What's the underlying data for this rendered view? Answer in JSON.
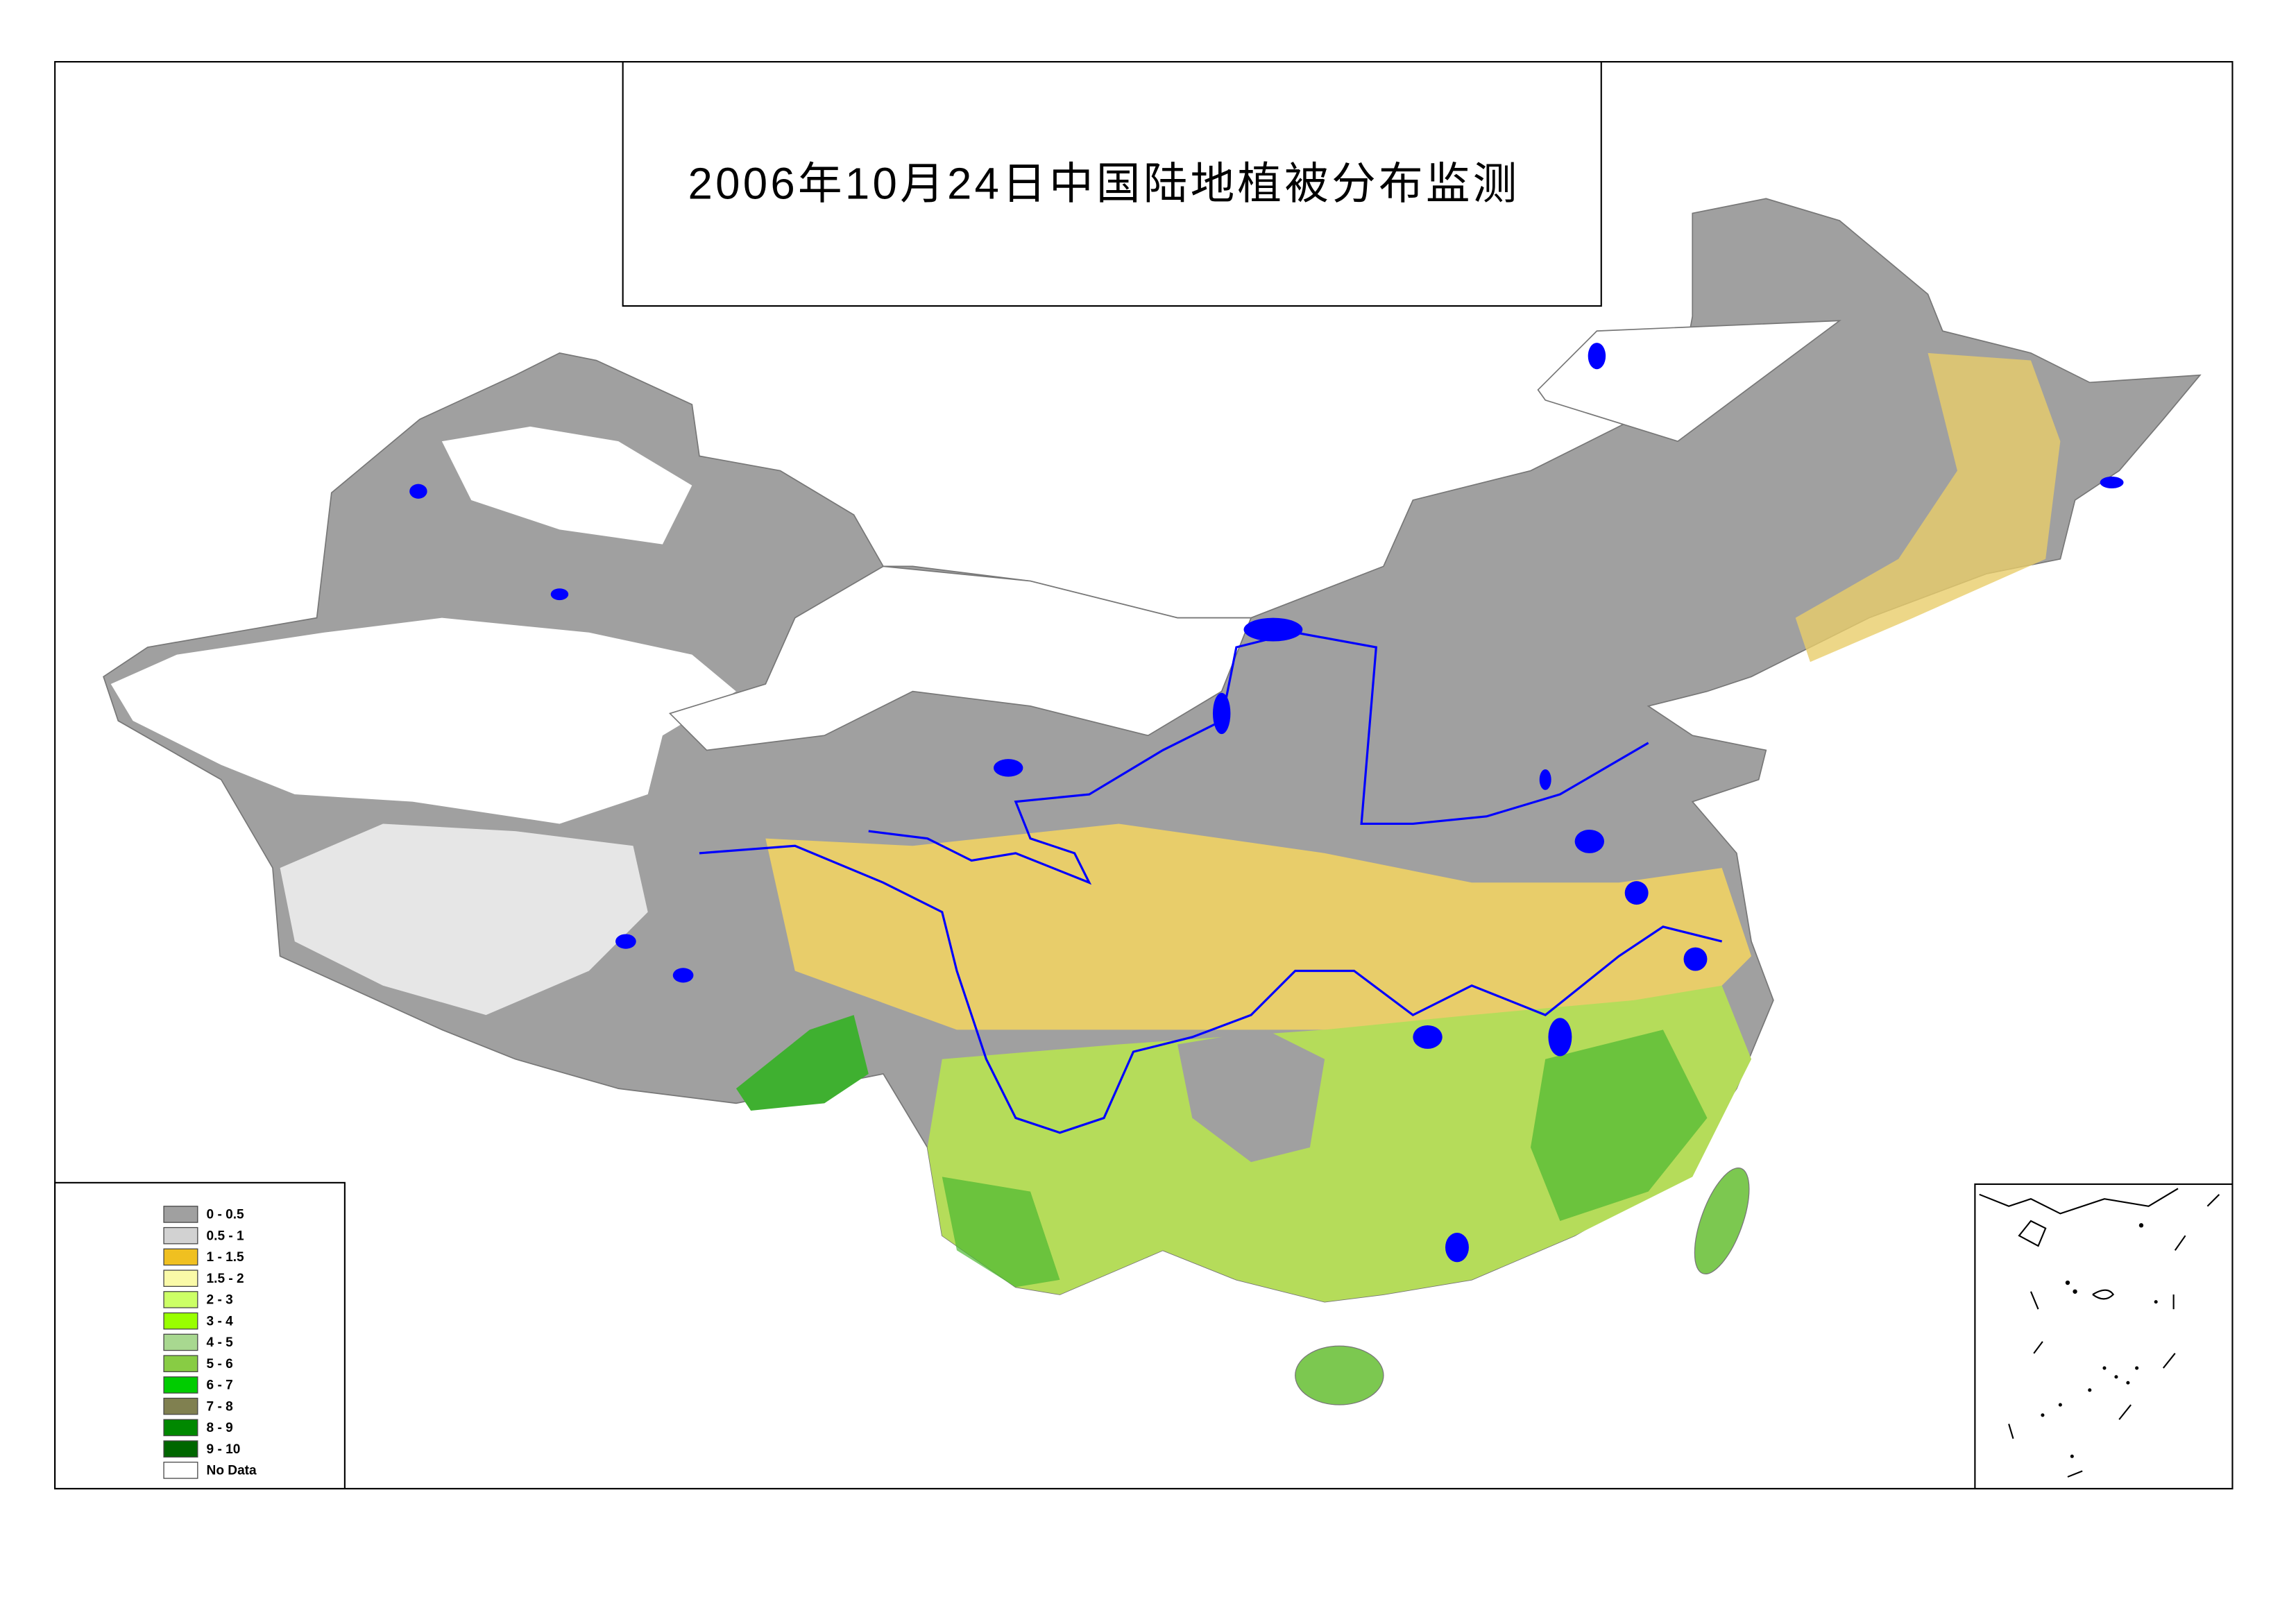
{
  "title": "2006年10月24日中国陆地植被分布监测",
  "legend": [
    {
      "label": "0 - 0.5",
      "color": "#a0a0a0"
    },
    {
      "label": "0.5 - 1",
      "color": "#d2d2d2"
    },
    {
      "label": "1 - 1.5",
      "color": "#f0c020"
    },
    {
      "label": "1.5 - 2",
      "color": "#fafaa8"
    },
    {
      "label": "2 - 3",
      "color": "#ccff66"
    },
    {
      "label": "3 - 4",
      "color": "#99ff00"
    },
    {
      "label": "4 - 5",
      "color": "#a8d890"
    },
    {
      "label": "5 - 6",
      "color": "#88cc44"
    },
    {
      "label": "6 - 7",
      "color": "#00cc00"
    },
    {
      "label": "7 - 8",
      "color": "#808050"
    },
    {
      "label": "8 - 9",
      "color": "#008800"
    },
    {
      "label": "9 - 10",
      "color": "#006600"
    },
    {
      "label": "No Data",
      "color": "#ffffff"
    }
  ]
}
